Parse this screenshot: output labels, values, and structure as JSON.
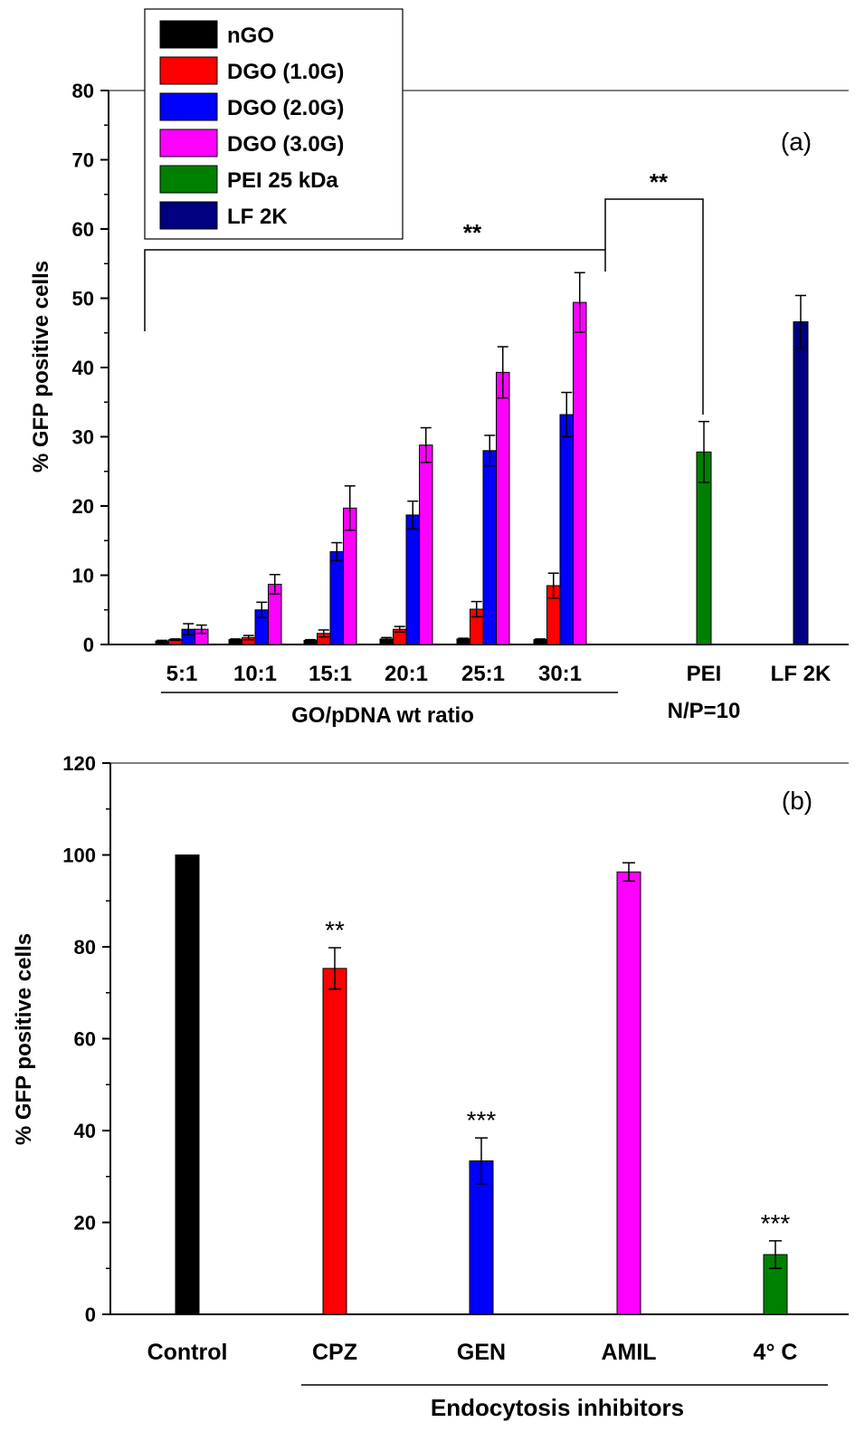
{
  "chart_data": [
    {
      "panel": "(a)",
      "type": "bar",
      "ylabel": "% GFP positive cells",
      "ylim": [
        0,
        80
      ],
      "yticks": [
        0,
        10,
        20,
        30,
        40,
        50,
        60,
        70,
        80
      ],
      "grid": false,
      "legend_position": "top-left",
      "group_axis_label": "GO/pDNA wt ratio",
      "groups": [
        {
          "label": "5:1",
          "sublabel": "",
          "bars": [
            {
              "series": "nGO",
              "value": 0.5,
              "error": 0.1
            },
            {
              "series": "DGO (1.0G)",
              "value": 0.7,
              "error": 0.1
            },
            {
              "series": "DGO (2.0G)",
              "value": 2.2,
              "error": 0.8
            },
            {
              "series": "DGO (3.0G)",
              "value": 2.2,
              "error": 0.6
            }
          ]
        },
        {
          "label": "10:1",
          "sublabel": "",
          "bars": [
            {
              "series": "nGO",
              "value": 0.7,
              "error": 0.1
            },
            {
              "series": "DGO (1.0G)",
              "value": 1.0,
              "error": 0.3
            },
            {
              "series": "DGO (2.0G)",
              "value": 5.0,
              "error": 1.1
            },
            {
              "series": "DGO (3.0G)",
              "value": 8.7,
              "error": 1.4
            }
          ]
        },
        {
          "label": "15:1",
          "sublabel": "",
          "bars": [
            {
              "series": "nGO",
              "value": 0.6,
              "error": 0.1
            },
            {
              "series": "DGO (1.0G)",
              "value": 1.6,
              "error": 0.5
            },
            {
              "series": "DGO (2.0G)",
              "value": 13.4,
              "error": 1.3
            },
            {
              "series": "DGO (3.0G)",
              "value": 19.7,
              "error": 3.2
            }
          ]
        },
        {
          "label": "20:1",
          "sublabel": "",
          "bars": [
            {
              "series": "nGO",
              "value": 0.8,
              "error": 0.2
            },
            {
              "series": "DGO (1.0G)",
              "value": 2.2,
              "error": 0.4
            },
            {
              "series": "DGO (2.0G)",
              "value": 18.7,
              "error": 2.0
            },
            {
              "series": "DGO (3.0G)",
              "value": 28.8,
              "error": 2.5
            }
          ]
        },
        {
          "label": "25:1",
          "sublabel": "",
          "bars": [
            {
              "series": "nGO",
              "value": 0.8,
              "error": 0.1
            },
            {
              "series": "DGO (1.0G)",
              "value": 5.1,
              "error": 1.1
            },
            {
              "series": "DGO (2.0G)",
              "value": 28.0,
              "error": 2.2
            },
            {
              "series": "DGO (3.0G)",
              "value": 39.3,
              "error": 3.7
            }
          ]
        },
        {
          "label": "30:1",
          "sublabel": "",
          "bars": [
            {
              "series": "nGO",
              "value": 0.7,
              "error": 0.1
            },
            {
              "series": "DGO (1.0G)",
              "value": 8.5,
              "error": 1.8
            },
            {
              "series": "DGO (2.0G)",
              "value": 33.2,
              "error": 3.2
            },
            {
              "series": "DGO (3.0G)",
              "value": 49.4,
              "error": 4.3
            }
          ]
        },
        {
          "label": "PEI",
          "sublabel": "N/P=10",
          "bars": [
            {
              "series": "PEI 25 kDa",
              "value": 27.8,
              "error": 4.4
            }
          ]
        },
        {
          "label": "LF 2K",
          "sublabel": "",
          "bars": [
            {
              "series": "LF 2K",
              "value": 46.6,
              "error": 3.8
            }
          ]
        }
      ],
      "series": [
        {
          "name": "nGO",
          "color": "#000000"
        },
        {
          "name": "DGO (1.0G)",
          "color": "#ff0000"
        },
        {
          "name": "DGO (2.0G)",
          "color": "#0000ff"
        },
        {
          "name": "DGO (3.0G)",
          "color": "#ff00ff"
        },
        {
          "name": "PEI 25 kDa",
          "color": "#008000"
        },
        {
          "name": "LF 2K",
          "color": "#000080"
        }
      ],
      "annotations": [
        "**",
        "**"
      ]
    },
    {
      "panel": "(b)",
      "type": "bar",
      "ylabel": "% GFP positive cells",
      "ylim": [
        0,
        120
      ],
      "yticks": [
        0,
        20,
        40,
        60,
        80,
        100,
        120
      ],
      "grid": false,
      "group_axis_label": "Endocytosis inhibitors",
      "categories": [
        "Control",
        "CPZ",
        "GEN",
        "AMIL",
        "4° C"
      ],
      "values": [
        100,
        75.3,
        33.4,
        96.3,
        13.0
      ],
      "errors": [
        0,
        4.5,
        5.0,
        2.0,
        3.0
      ],
      "significance": [
        "",
        "**",
        "***",
        "",
        "***"
      ],
      "colors": [
        "#000000",
        "#ff0000",
        "#0000ff",
        "#ff00ff",
        "#008000"
      ]
    }
  ]
}
